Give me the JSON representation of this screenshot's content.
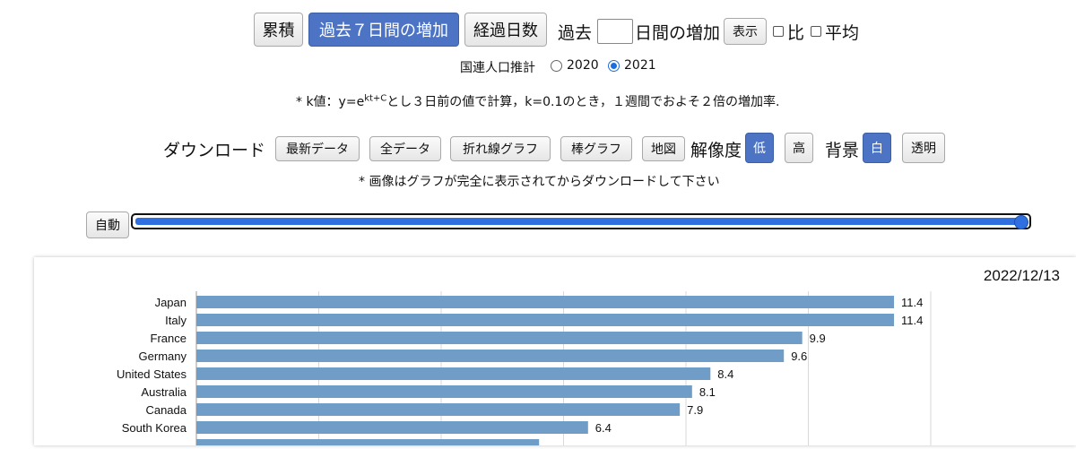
{
  "toolbar": {
    "cumulative": "累積",
    "past7": "過去７日間の増加",
    "elapsed_days": "経過日数",
    "past_label": "過去",
    "days_increase": "日間の増加",
    "show": "表示",
    "ratio": "比",
    "average": "平均"
  },
  "population": {
    "label": "国連人口推計",
    "options": [
      "2020",
      "2021"
    ],
    "selected": "2021"
  },
  "note": {
    "prefix": "* k値：y=e",
    "superscript": "kt+C",
    "suffix": "とし３日前の値で計算，k=0.1のとき，１週間でおよそ２倍の増加率."
  },
  "download": {
    "label": "ダウンロード",
    "latest": "最新データ",
    "all": "全データ",
    "line_chart": "折れ線グラフ",
    "bar_chart": "棒グラフ",
    "map": "地図",
    "resolution_label": "解像度",
    "low": "低",
    "high": "高",
    "background_label": "背景",
    "white": "白",
    "transparent": "透明",
    "image_note": "* 画像はグラフが完全に表示されてからダウンロードして下さい"
  },
  "slider": {
    "auto": "自動",
    "value_fraction": 1.0
  },
  "chart_data": {
    "type": "bar",
    "orientation": "horizontal",
    "date": "2022/12/13",
    "categories": [
      "Japan",
      "Italy",
      "France",
      "Germany",
      "United States",
      "Australia",
      "Canada",
      "South Korea"
    ],
    "values": [
      11.4,
      11.4,
      9.9,
      9.6,
      8.4,
      8.1,
      7.9,
      6.4
    ],
    "value_labels": [
      "11.4",
      "11.4",
      "9.9",
      "9.6",
      "8.4",
      "8.1",
      "7.9",
      "6.4"
    ],
    "xlim": [
      0,
      12
    ],
    "grid": true,
    "bar_color": "#6f9dc8"
  },
  "colors": {
    "active_button": "#4c73c4",
    "slider": "#2f6fe0",
    "bar": "#6f9dc8"
  }
}
